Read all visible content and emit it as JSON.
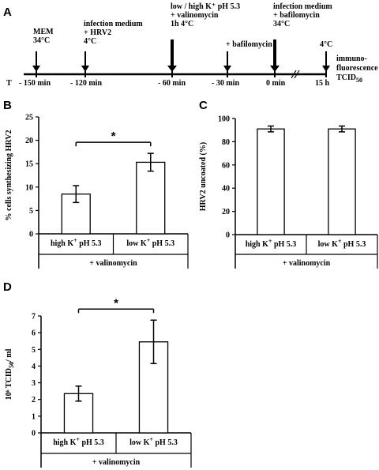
{
  "panels": {
    "a_letter": "A",
    "b_letter": "B",
    "c_letter": "C",
    "d_letter": "D"
  },
  "timeline": {
    "t_label": "T",
    "events": [
      {
        "key": "mem",
        "time": -150,
        "lines": [
          "MEM",
          "34°C"
        ],
        "arrow": "thin"
      },
      {
        "key": "infection",
        "time": -120,
        "lines": [
          "infection medium",
          "+ HRV2",
          "4°C"
        ],
        "arrow": "thin"
      },
      {
        "key": "kplus",
        "time": -60,
        "lines": [
          "low / high K⁺ pH 5.3",
          "+ valinomycin",
          "1h 4°C"
        ],
        "arrow": "thick"
      },
      {
        "key": "bafilo",
        "time": -30,
        "lines": [
          "+ bafilomycin"
        ],
        "arrow": "thin"
      },
      {
        "key": "infection2",
        "time": 0,
        "lines": [
          "infection medium",
          "+ bafilomycin",
          "34°C"
        ],
        "arrow": "thick"
      },
      {
        "key": "cold",
        "time": "15 h",
        "lines": [
          "4°C"
        ],
        "arrow": "thin"
      }
    ],
    "end_note": [
      "immuno-",
      "fluorescence",
      "TCID50"
    ],
    "time_labels": [
      "- 150 min",
      "- 120 min",
      "- 60 min",
      "- 30 min",
      "0 min",
      "15 h"
    ]
  },
  "chart_data": [
    {
      "panel": "B",
      "type": "bar",
      "categories": [
        "high K+ pH 5.3",
        "low K+ pH 5.3"
      ],
      "values": [
        8.5,
        15.3
      ],
      "errors": [
        1.8,
        1.9
      ],
      "ylabel": "% cells synthesizing HRV2",
      "group_label": "+ valinomycin",
      "ylim": [
        0,
        25
      ],
      "yticks": [
        0,
        5,
        10,
        15,
        20,
        25
      ],
      "significance": "*"
    },
    {
      "panel": "C",
      "type": "bar",
      "categories": [
        "high K+ pH 5.3",
        "low K+ pH 5.3"
      ],
      "values": [
        91,
        91
      ],
      "errors": [
        2.5,
        2.5
      ],
      "ylabel": "HRV2 uncoated (%)",
      "group_label": "+ valinomycin",
      "ylim": [
        0,
        100
      ],
      "yticks": [
        0,
        20,
        40,
        60,
        80,
        100
      ]
    },
    {
      "panel": "D",
      "type": "bar",
      "categories": [
        "high K+ pH 5.3",
        "low K+ pH 5.3"
      ],
      "values": [
        2.35,
        5.45
      ],
      "errors": [
        0.45,
        1.3
      ],
      "ylabel": "10⁶ TCID50/ ml",
      "group_label": "+ valinomycin",
      "ylim": [
        0,
        7
      ],
      "yticks": [
        0,
        1,
        2,
        3,
        4,
        5,
        6,
        7
      ],
      "significance": "*"
    }
  ]
}
